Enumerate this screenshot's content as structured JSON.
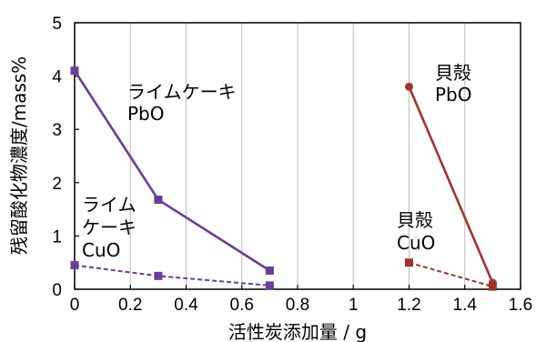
{
  "chart_data": {
    "type": "line",
    "xlabel": "活性炭添加量 / g",
    "ylabel": "残留酸化物濃度/mass%",
    "xlim": [
      0,
      1.6
    ],
    "ylim": [
      0,
      5
    ],
    "xticks": [
      "0",
      "0.2",
      "0.4",
      "0.6",
      "0.8",
      "1",
      "1.2",
      "1.4",
      "1.6"
    ],
    "yticks": [
      "0",
      "1",
      "2",
      "3",
      "4",
      "5"
    ],
    "grid": "vertical",
    "series": [
      {
        "name": "ライムケーキ PbO",
        "color": "#6a3d9a",
        "dashed": false,
        "marker": "square",
        "x": [
          0,
          0.3,
          0.7
        ],
        "y": [
          4.1,
          1.68,
          0.35
        ]
      },
      {
        "name": "ライムケーキ CuO",
        "color": "#6a3d9a",
        "dashed": true,
        "marker": "square",
        "x": [
          0,
          0.3,
          0.7
        ],
        "y": [
          0.45,
          0.25,
          0.07
        ]
      },
      {
        "name": "貝殻 PbO",
        "color": "#a0342a",
        "dashed": false,
        "marker": "circle",
        "x": [
          1.2,
          1.5
        ],
        "y": [
          3.8,
          0.12
        ]
      },
      {
        "name": "貝殻 CuO",
        "color": "#a0342a",
        "dashed": true,
        "marker": "square",
        "x": [
          1.2,
          1.5
        ],
        "y": [
          0.5,
          0.05
        ]
      }
    ],
    "annotations": [
      {
        "lines": [
          "ライムケーキ",
          "PbO"
        ]
      },
      {
        "lines": [
          "ライム",
          "ケーキ",
          "CuO"
        ]
      },
      {
        "lines": [
          "貝殻",
          "PbO"
        ]
      },
      {
        "lines": [
          "貝殻",
          "CuO"
        ]
      }
    ]
  }
}
